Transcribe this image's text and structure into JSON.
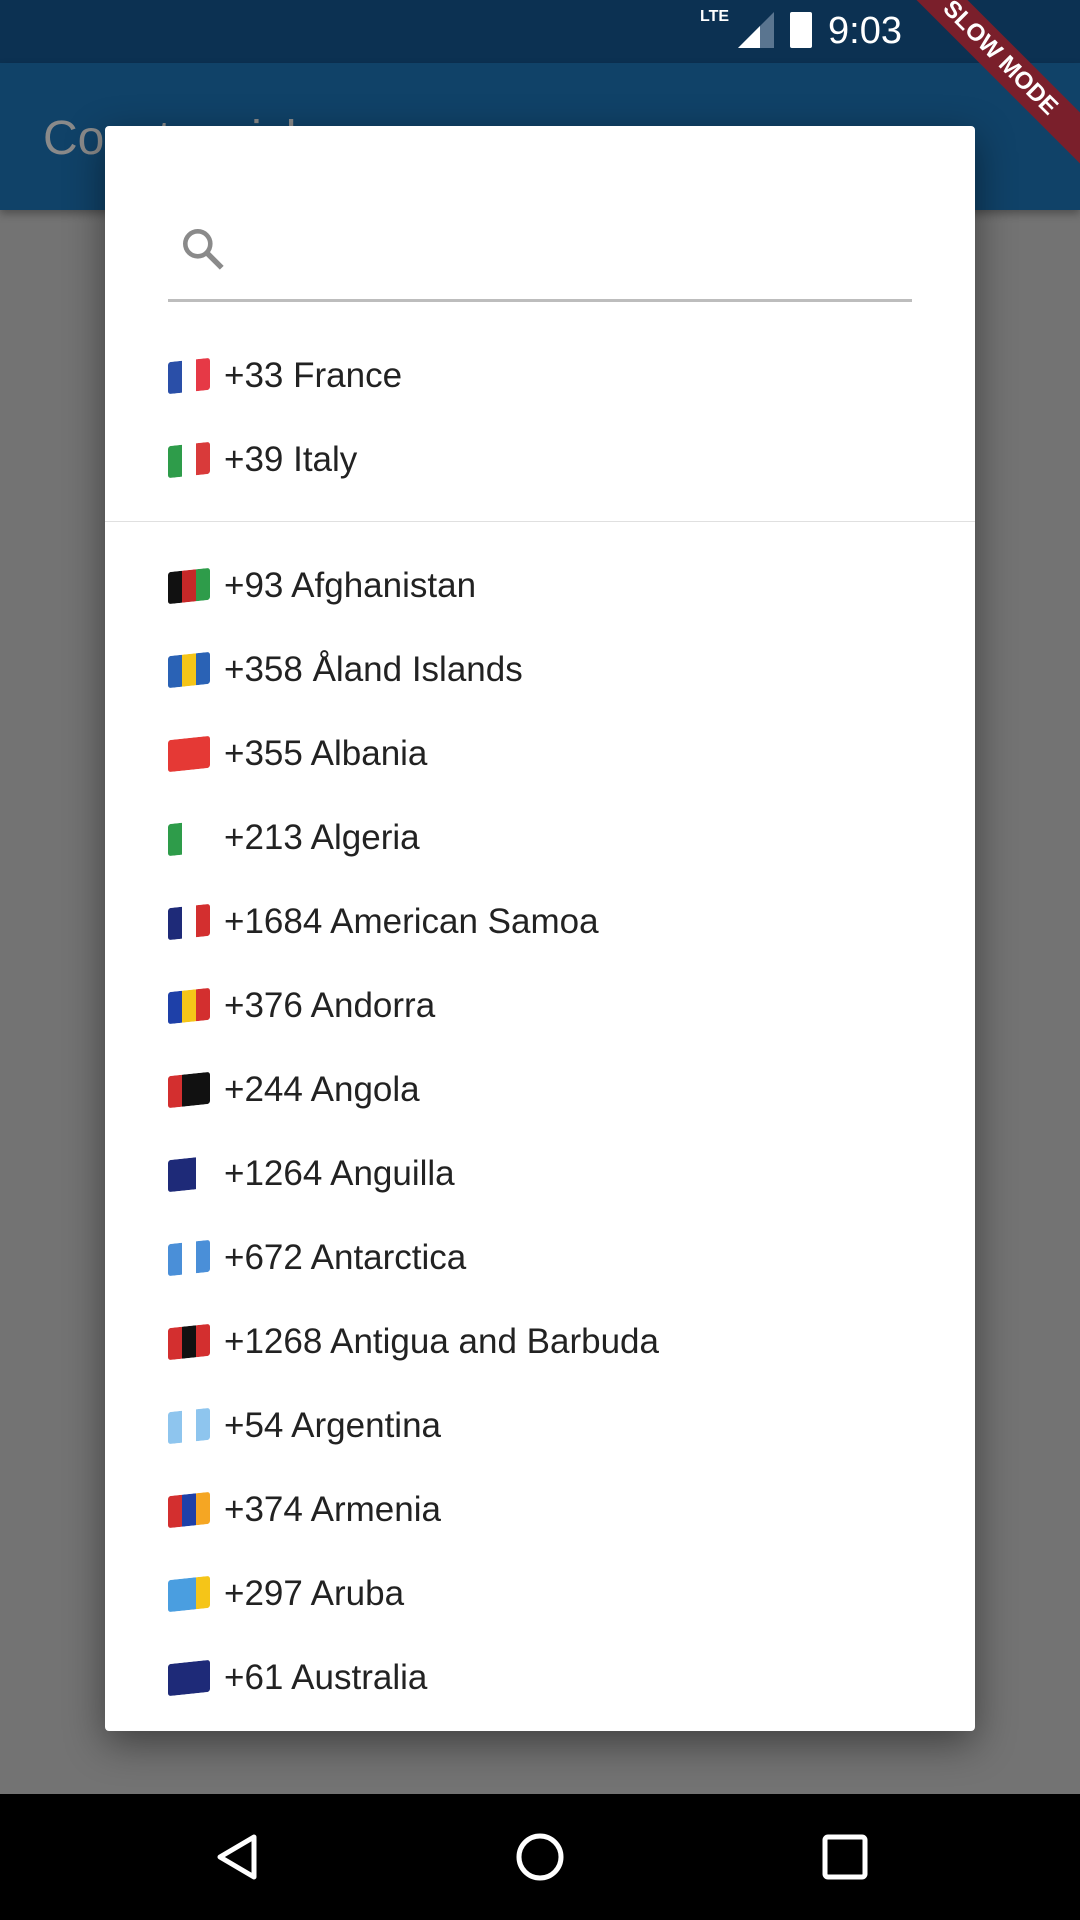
{
  "status_bar": {
    "time": "9:03",
    "network": "LTE",
    "banner": "SLOW MODE"
  },
  "app_bar": {
    "title": "Country picker"
  },
  "dialog": {
    "search": {
      "placeholder": "",
      "value": "",
      "icon": "search-icon"
    },
    "favorites": [
      {
        "code": "+33",
        "name": "France",
        "flag": [
          "#2a4fa8",
          "#fff",
          "#e63946"
        ]
      },
      {
        "code": "+39",
        "name": "Italy",
        "flag": [
          "#2e9c4a",
          "#fff",
          "#d93a3a"
        ]
      }
    ],
    "countries": [
      {
        "code": "+93",
        "name": "Afghanistan",
        "flag": [
          "#111",
          "#c62828",
          "#2e9c4a"
        ]
      },
      {
        "code": "+358",
        "name": "Åland Islands",
        "flag": [
          "#2a62b5",
          "#f5c518",
          "#2a62b5"
        ]
      },
      {
        "code": "+355",
        "name": "Albania",
        "flag": [
          "#e53935",
          "#e53935",
          "#e53935"
        ]
      },
      {
        "code": "+213",
        "name": "Algeria",
        "flag": [
          "#2e9c4a",
          "#fff",
          "#fff"
        ]
      },
      {
        "code": "+1684",
        "name": "American Samoa",
        "flag": [
          "#1e2a78",
          "#fff",
          "#d32f2f"
        ]
      },
      {
        "code": "+376",
        "name": "Andorra",
        "flag": [
          "#1e40a8",
          "#f5c518",
          "#d32f2f"
        ]
      },
      {
        "code": "+244",
        "name": "Angola",
        "flag": [
          "#d32f2f",
          "#111",
          "#111"
        ]
      },
      {
        "code": "+1264",
        "name": "Anguilla",
        "flag": [
          "#1e2a78",
          "#1e2a78",
          "#fff"
        ]
      },
      {
        "code": "+672",
        "name": "Antarctica",
        "flag": [
          "#4a8fd8",
          "#fff",
          "#4a8fd8"
        ]
      },
      {
        "code": "+1268",
        "name": "Antigua and Barbuda",
        "flag": [
          "#d32f2f",
          "#111",
          "#d32f2f"
        ]
      },
      {
        "code": "+54",
        "name": "Argentina",
        "flag": [
          "#8ec5ee",
          "#fff",
          "#8ec5ee"
        ]
      },
      {
        "code": "+374",
        "name": "Armenia",
        "flag": [
          "#d32f2f",
          "#1e40a8",
          "#f5a623"
        ]
      },
      {
        "code": "+297",
        "name": "Aruba",
        "flag": [
          "#4a9ee0",
          "#4a9ee0",
          "#f5c518"
        ]
      },
      {
        "code": "+61",
        "name": "Australia",
        "flag": [
          "#1e2a78",
          "#1e2a78",
          "#1e2a78"
        ]
      }
    ]
  },
  "nav": {
    "back": "back-icon",
    "home": "home-icon",
    "recents": "recents-icon"
  }
}
